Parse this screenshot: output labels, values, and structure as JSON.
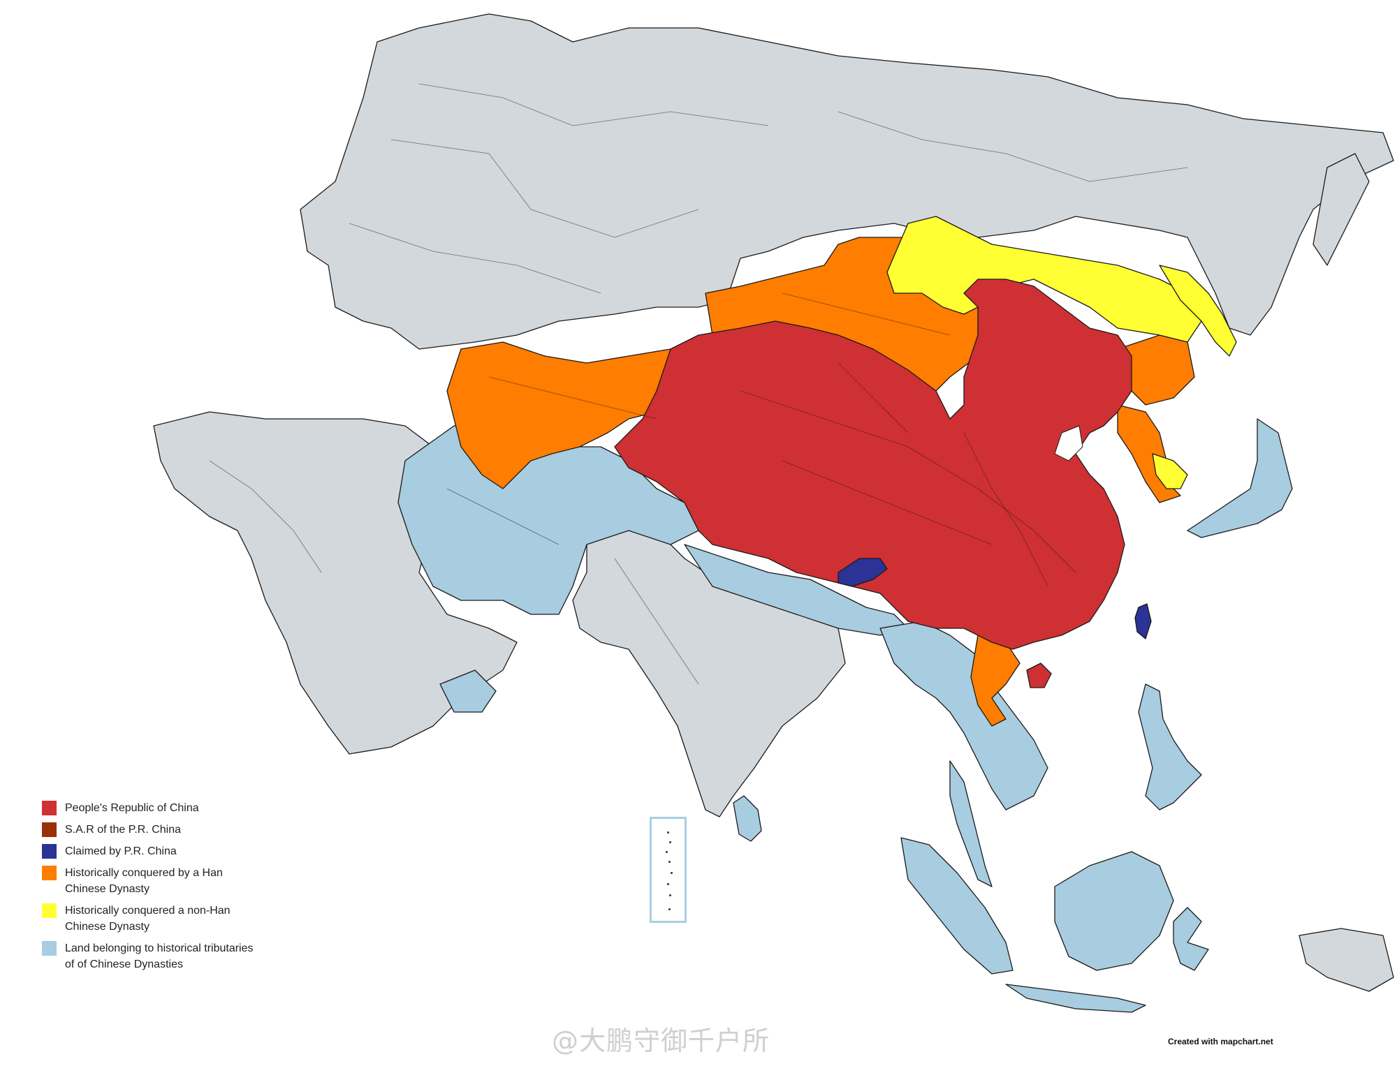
{
  "colors": {
    "prc": "#cf3033",
    "sar": "#9a2f08",
    "claimed": "#2b3396",
    "han": "#ff7d00",
    "non_han": "#ffff33",
    "tributary": "#a8cce0",
    "other": "#d3d8dc",
    "sea": "#ffffff"
  },
  "legend": {
    "items": [
      {
        "label": "People's Republic of China",
        "color": "#cf3033"
      },
      {
        "label": "S.A.R of the P.R. China",
        "color": "#9a2f08"
      },
      {
        "label": "Claimed by P.R. China",
        "color": "#2b3396"
      },
      {
        "label": "Historically conquered by a Han Chinese Dynasty",
        "color": "#ff7d00"
      },
      {
        "label": "Historically conquered a non-Han Chinese Dynasty",
        "color": "#ffff33"
      },
      {
        "label": "Land belonging to historical tributaries of of Chinese Dynasties",
        "color": "#a8cce0"
      }
    ]
  },
  "credit": "Created with mapchart.net",
  "watermark": "@大鹏守御千户所"
}
